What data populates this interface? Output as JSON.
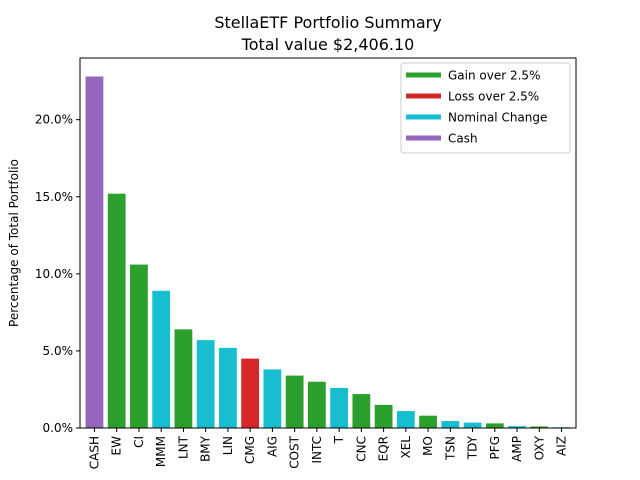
{
  "chart_data": {
    "type": "bar",
    "title": "StellaETF Portfolio Summary",
    "subtitle": "Total value $2,406.10",
    "xlabel": "",
    "ylabel": "Percentage of Total Portfolio",
    "ylim": [
      0,
      0.24
    ],
    "yticks": [
      0,
      0.05,
      0.1,
      0.15,
      0.2
    ],
    "ytick_labels": [
      "0.0%",
      "5.0%",
      "10.0%",
      "15.0%",
      "20.0%"
    ],
    "grid": false,
    "legend_position": "top-right",
    "legend": [
      {
        "label": "Gain over 2.5%",
        "color": "#2ca02c"
      },
      {
        "label": "Loss over 2.5%",
        "color": "#d62728"
      },
      {
        "label": "Nominal Change",
        "color": "#17becf"
      },
      {
        "label": "Cash",
        "color": "#9467bd"
      }
    ],
    "categories": [
      "CASH",
      "EW",
      "CI",
      "MMM",
      "LNT",
      "BMY",
      "LIN",
      "CMG",
      "AIG",
      "COST",
      "INTC",
      "T",
      "CNC",
      "EQR",
      "XEL",
      "MO",
      "TSN",
      "TDY",
      "PFG",
      "AMP",
      "OXY",
      "AIZ"
    ],
    "values": [
      0.228,
      0.152,
      0.106,
      0.089,
      0.064,
      0.057,
      0.052,
      0.045,
      0.038,
      0.034,
      0.03,
      0.026,
      0.022,
      0.015,
      0.011,
      0.008,
      0.0045,
      0.0035,
      0.003,
      0.0012,
      0.001,
      0.0005
    ],
    "bar_groups": [
      "Cash",
      "Gain over 2.5%",
      "Gain over 2.5%",
      "Nominal Change",
      "Gain over 2.5%",
      "Nominal Change",
      "Nominal Change",
      "Loss over 2.5%",
      "Nominal Change",
      "Gain over 2.5%",
      "Gain over 2.5%",
      "Nominal Change",
      "Gain over 2.5%",
      "Gain over 2.5%",
      "Nominal Change",
      "Gain over 2.5%",
      "Nominal Change",
      "Nominal Change",
      "Gain over 2.5%",
      "Nominal Change",
      "Gain over 2.5%",
      "Nominal Change"
    ]
  }
}
